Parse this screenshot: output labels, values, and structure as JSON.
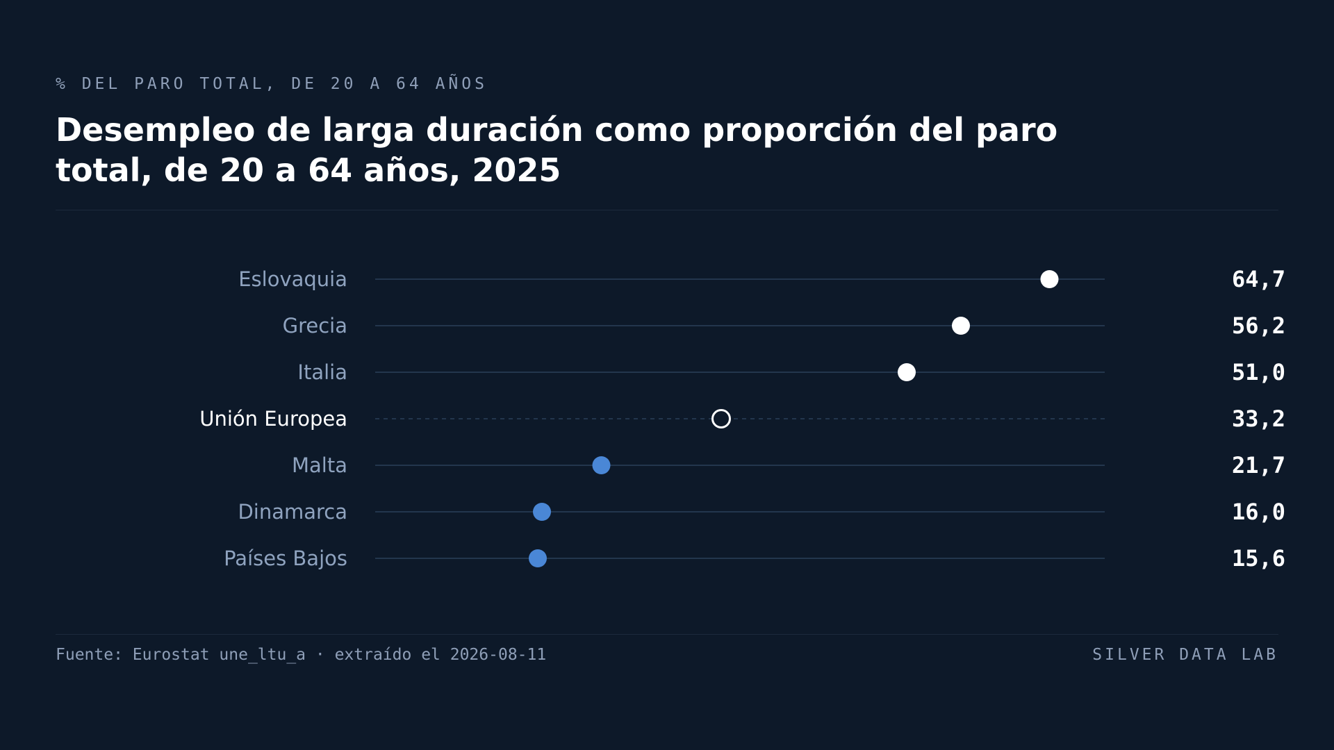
{
  "header": {
    "eyebrow": "% DEL PARO TOTAL, DE 20 A 64 AÑOS",
    "title": "Desempleo de larga duración como proporción del paro total, de 20 a 64 años, 2025"
  },
  "footer": {
    "source": "Fuente: Eurostat une_ltu_a · extraído el 2026-08-11",
    "brand": "SILVER DATA LAB"
  },
  "colors": {
    "background": "#0d1929",
    "highlight_dot": "#ffffff",
    "low_dot": "#4a87d6",
    "reference_dot": "#ffffff",
    "track": "#23364d"
  },
  "chart_data": {
    "type": "scatter",
    "subtype": "dot-plot",
    "title": "Desempleo de larga duración como proporción del paro total, de 20 a 64 años, 2025",
    "xlim": [
      0,
      70
    ],
    "grid": false,
    "legend": "none",
    "categories": [
      "Eslovaquia",
      "Grecia",
      "Italia",
      "Unión Europea",
      "Malta",
      "Dinamarca",
      "Países Bajos"
    ],
    "values": [
      64.7,
      56.2,
      51.0,
      33.2,
      21.7,
      16.0,
      15.6
    ],
    "value_labels": [
      "64,7",
      "56,2",
      "51,0",
      "33,2",
      "21,7",
      "16,0",
      "15,6"
    ],
    "groups": [
      "high",
      "high",
      "high",
      "reference",
      "low",
      "low",
      "low"
    ]
  }
}
